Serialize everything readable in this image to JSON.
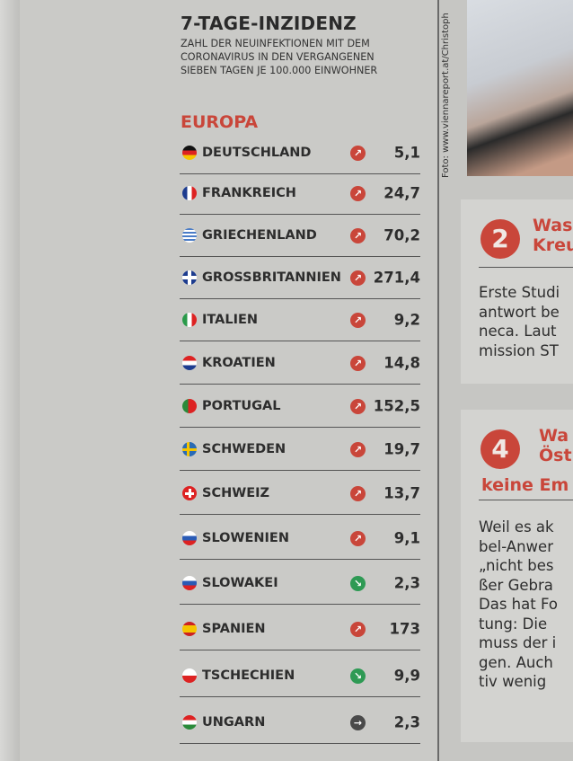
{
  "header": {
    "title": "7-TAGE-INZIDENZ",
    "subtitle_lines": [
      "ZAHL DER NEUINFEKTIONEN MIT DEM",
      "CORONAVIRUS IN DEN VERGANGENEN",
      "SIEBEN TAGEN JE 100.000 EINWOHNER"
    ],
    "region": "EUROPA"
  },
  "colors": {
    "accent": "#c9463a",
    "trend_up": "#c9463a",
    "trend_down": "#2e9a54",
    "trend_flat": "#4a4a4a"
  },
  "rows": [
    {
      "country": "DEUTSCHLAND",
      "trend": "up",
      "value": "5,1"
    },
    {
      "country": "FRANKREICH",
      "trend": "up",
      "value": "24,7"
    },
    {
      "country": "GRIECHENLAND",
      "trend": "up",
      "value": "70,2"
    },
    {
      "country": "GROSSBRITANNIEN",
      "trend": "up",
      "value": "271,4"
    },
    {
      "country": "ITALIEN",
      "trend": "up",
      "value": "9,2"
    },
    {
      "country": "KROATIEN",
      "trend": "up",
      "value": "14,8"
    },
    {
      "country": "PORTUGAL",
      "trend": "up",
      "value": "152,5"
    },
    {
      "country": "SCHWEDEN",
      "trend": "up",
      "value": "19,7"
    },
    {
      "country": "SCHWEIZ",
      "trend": "up",
      "value": "13,7"
    },
    {
      "country": "SLOWENIEN",
      "trend": "up",
      "value": "9,1"
    },
    {
      "country": "SLOWAKEI",
      "trend": "down",
      "value": "2,3"
    },
    {
      "country": "SPANIEN",
      "trend": "up",
      "value": "173"
    },
    {
      "country": "TSCHECHIEN",
      "trend": "down",
      "value": "9,9"
    },
    {
      "country": "UNGARN",
      "trend": "flat",
      "value": "2,3"
    }
  ],
  "side": {
    "photo_credit": "Foto: www.viennareport.at/Christoph",
    "box2": {
      "number": "2",
      "heading": [
        "Was",
        "Kreu"
      ],
      "lines": [
        "Erste Studi",
        "antwort be",
        "neca. Laut",
        "mission ST"
      ]
    },
    "box4": {
      "number": "4",
      "heading": [
        "Wa",
        "Öst",
        "keine Em"
      ],
      "lines": [
        "Weil es ak",
        "bel-Anwer",
        "„nicht bes",
        "ßer Gebra",
        "Das hat Fo",
        "tung: Die",
        "muss der i",
        "gen. Auch",
        "tiv wenig"
      ]
    }
  }
}
